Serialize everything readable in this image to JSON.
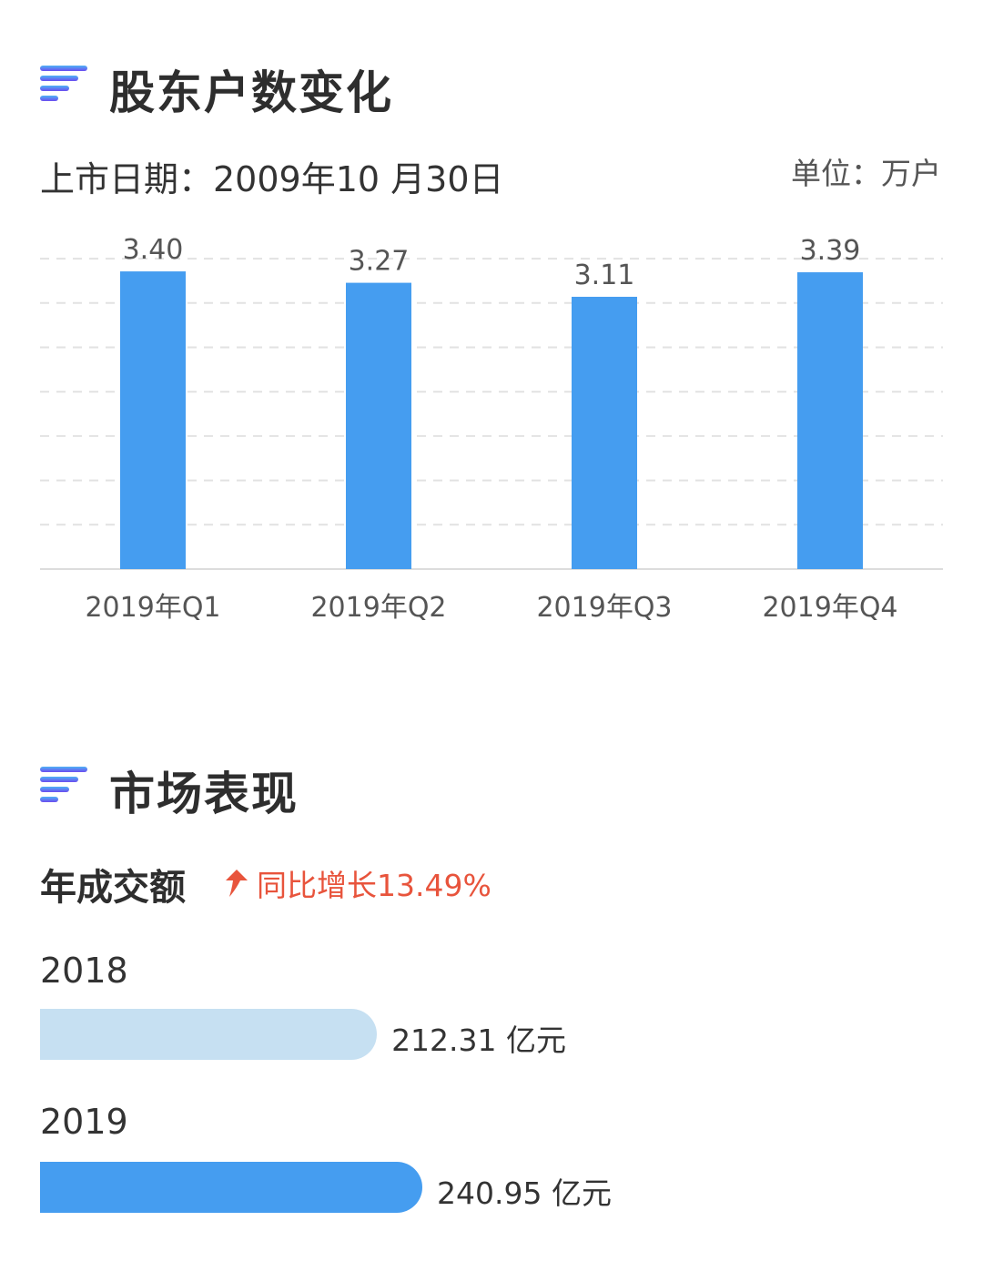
{
  "holders_section": {
    "title": "股东户数变化",
    "listing_date": "上市日期：2009年10 月30日",
    "unit": "单位：万户"
  },
  "chart_data": {
    "type": "bar",
    "categories": [
      "2019年Q1",
      "2019年Q2",
      "2019年Q3",
      "2019年Q4"
    ],
    "values": [
      3.4,
      3.27,
      3.11,
      3.39
    ],
    "value_labels": [
      "3.40",
      "3.27",
      "3.11",
      "3.39"
    ],
    "ylim": [
      0,
      3.9
    ],
    "grid": true,
    "bar_color": "#459df0"
  },
  "market_section": {
    "title": "市场表现",
    "subtitle": "年成交额",
    "growth_text": "同比增长13.49%",
    "growth_color": "#e8543c",
    "items": [
      {
        "year": "2018",
        "value": 212.31,
        "value_text": "212.31 亿元",
        "color": "#c6e0f2"
      },
      {
        "year": "2019",
        "value": 240.95,
        "value_text": "240.95 亿元",
        "color": "#459df0"
      }
    ]
  }
}
